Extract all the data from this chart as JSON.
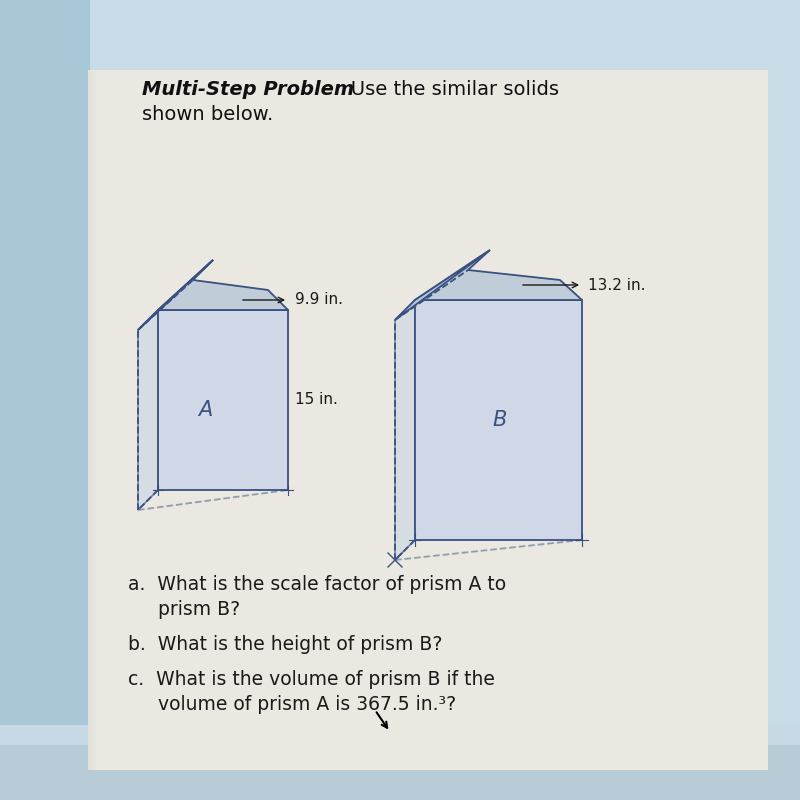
{
  "bg_left_color": "#a8c8d8",
  "bg_right_color": "#c8dce8",
  "page_color": "#e8e4dc",
  "title_bold": "Multi-Step Problem",
  "title_regular": "   Use the similar solids",
  "title_line2": "shown below.",
  "title_fontsize": 14,
  "prism_a_label": "A",
  "prism_b_label": "B",
  "dim_a_width": "9.9 in.",
  "dim_a_height": "15 in.",
  "dim_b_width": "13.2 in.",
  "text_color": "#2a3a5a",
  "prism_edge_color": "#3a5080",
  "prism_fill_front": "#d0d8e8",
  "prism_fill_side": "#b8c8dc",
  "prism_fill_top": "#c0ccd8",
  "q_a": "a.  What is the scale factor of prism A to",
  "q_a2": "     prism B?",
  "q_b": "b.  What is the height of prism B?",
  "q_c": "c.  What is the volume of prism B if the",
  "q_c2": "     volume of prism A is 367.5 in.³?"
}
